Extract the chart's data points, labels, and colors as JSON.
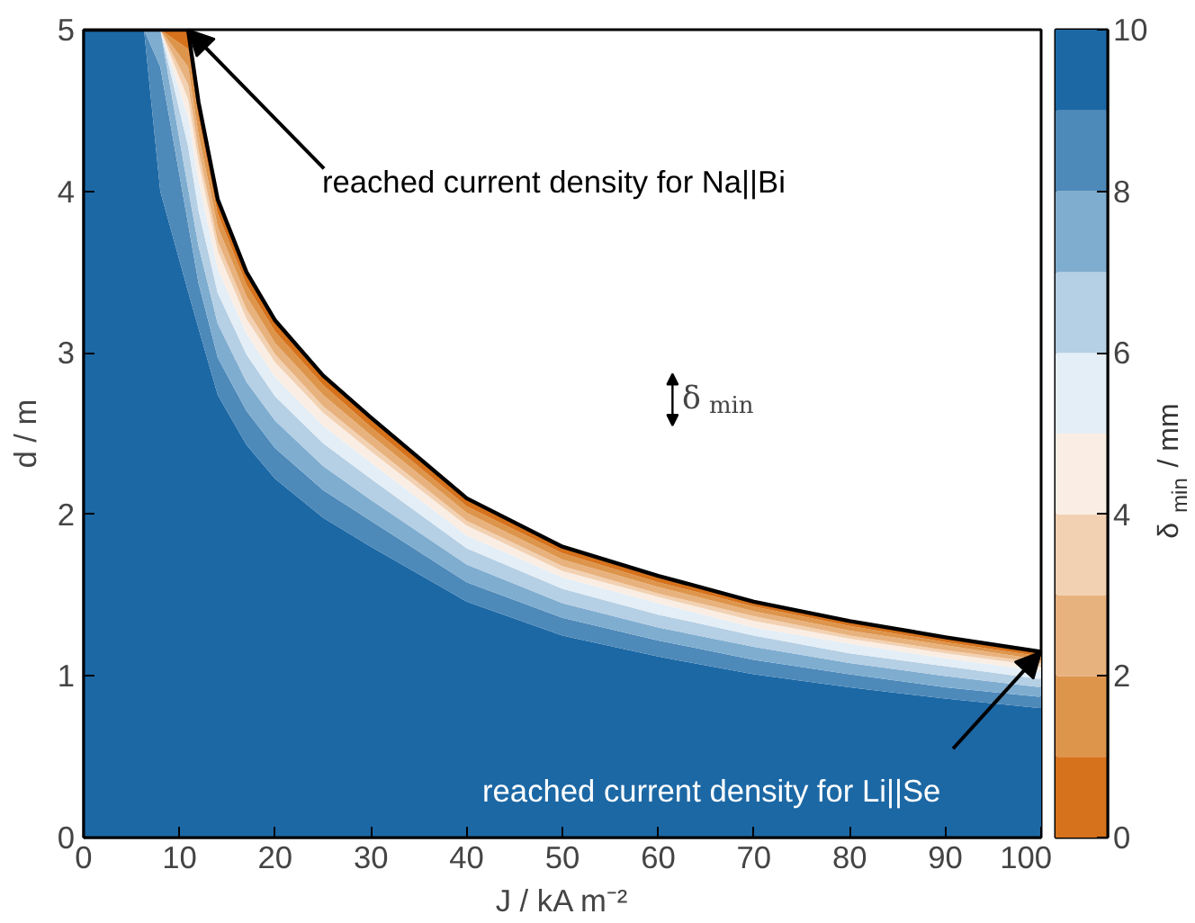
{
  "chart_data": {
    "type": "area",
    "stacked": true,
    "xlabel": "J / kA m⁻²",
    "ylabel": "d / m",
    "clabel": "δ$_{min}$ / mm",
    "xlim": [
      0,
      100
    ],
    "xticks": [
      0,
      10,
      20,
      30,
      40,
      50,
      60,
      70,
      80,
      90,
      100
    ],
    "ylim": [
      0,
      5
    ],
    "yticks": [
      0,
      1,
      2,
      3,
      4,
      5
    ],
    "clim": [
      0,
      10
    ],
    "cticks": [
      0,
      2,
      4,
      6,
      8,
      10
    ],
    "grid": false,
    "annotations": [
      {
        "text": "reached current density for Na||Bi",
        "x": 10.9,
        "y": 5
      },
      {
        "text": "reached current density for Li||Se",
        "x": 100,
        "y": 1.15
      },
      "δ$_{min}$"
    ],
    "x": [
      0,
      6.3,
      8,
      10.9,
      12,
      14,
      17,
      20,
      25,
      30,
      40,
      50,
      60,
      70,
      80,
      90,
      100
    ],
    "series": [
      {
        "color": "#1c68a5",
        "values": [
          5,
          5,
          4.0,
          3.38,
          3.15,
          2.74,
          2.43,
          2.22,
          1.98,
          1.8,
          1.46,
          1.25,
          1.12,
          1.01,
          0.93,
          0.86,
          0.8
        ]
      },
      {
        "color": "#4d89b9",
        "values": [
          0,
          0,
          0.77,
          0.42,
          0.28,
          0.23,
          0.21,
          0.19,
          0.17,
          0.16,
          0.12,
          0.11,
          0.1,
          0.09,
          0.08,
          0.07,
          0.07
        ]
      },
      {
        "color": "#7fadd0",
        "values": [
          0,
          0,
          0.23,
          0.22,
          0.23,
          0.21,
          0.18,
          0.17,
          0.15,
          0.13,
          0.11,
          0.09,
          0.08,
          0.08,
          0.07,
          0.07,
          0.06
        ]
      },
      {
        "color": "#b5cfe4",
        "values": [
          0,
          0,
          0,
          0.26,
          0.22,
          0.19,
          0.17,
          0.15,
          0.14,
          0.13,
          0.1,
          0.09,
          0.08,
          0.07,
          0.06,
          0.06,
          0.05
        ]
      },
      {
        "color": "#e4eef6",
        "values": [
          0,
          0,
          0,
          0.18,
          0.18,
          0.15,
          0.13,
          0.12,
          0.11,
          0.1,
          0.08,
          0.07,
          0.07,
          0.05,
          0.06,
          0.05,
          0.05
        ]
      },
      {
        "color": "#faeee4",
        "values": [
          0,
          0,
          0,
          0.11,
          0.12,
          0.11,
          0.09,
          0.09,
          0.08,
          0.07,
          0.06,
          0.04,
          0.04,
          0.04,
          0.03,
          0.03,
          0.03
        ]
      },
      {
        "color": "#f2d1b2",
        "values": [
          0,
          0,
          0,
          0.09,
          0.07,
          0.06,
          0.06,
          0.05,
          0.04,
          0.04,
          0.03,
          0.03,
          0.02,
          0.03,
          0.02,
          0.02,
          0.02
        ]
      },
      {
        "color": "#e8b27e",
        "values": [
          0,
          0,
          0,
          0.11,
          0.1,
          0.09,
          0.08,
          0.07,
          0.07,
          0.06,
          0.05,
          0.04,
          0.04,
          0.03,
          0.03,
          0.03,
          0.02
        ]
      },
      {
        "color": "#dd954c",
        "values": [
          0,
          0,
          0,
          0.11,
          0.1,
          0.08,
          0.07,
          0.07,
          0.06,
          0.05,
          0.04,
          0.04,
          0.03,
          0.03,
          0.03,
          0.02,
          0.02
        ]
      },
      {
        "color": "#d6721c",
        "line_style": "solid",
        "values": [
          0,
          0,
          0,
          0.12,
          0.1,
          0.09,
          0.08,
          0.07,
          0.06,
          0.06,
          0.05,
          0.04,
          0.04,
          0.03,
          0.03,
          0.03,
          0.03
        ]
      }
    ]
  }
}
